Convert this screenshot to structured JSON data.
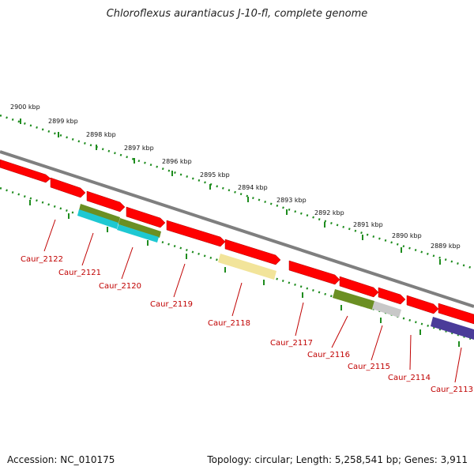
{
  "title": "Chloroflexus aurantiacus J-10-fl, complete genome",
  "accession": "Accession: NC_010175",
  "summary": "Topology: circular; Length: 5,258,541 bp; Genes: 3,911",
  "colors": {
    "backbone": "#7f7f7f",
    "ruler": "#1e8c1e",
    "gene": "#ff0000",
    "gene_label": "#c00000",
    "olive": "#6b8f23",
    "cyan": "#1ec8d2",
    "pale_yellow": "#f2e49a",
    "light_gray": "#c8c8c8",
    "purple": "#4a3c99"
  },
  "kbp_labels": [
    "2900 kbp",
    "2899 kbp",
    "2898 kbp",
    "2897 kbp",
    "2896 kbp",
    "2895 kbp",
    "2894 kbp",
    "2893 kbp",
    "2892 kbp",
    "2891 kbp",
    "2890 kbp",
    "2889 kbp"
  ],
  "gene_labels": [
    "Caur_2122",
    "Caur_2121",
    "Caur_2120",
    "Caur_2119",
    "Caur_2118",
    "Caur_2117",
    "Caur_2116",
    "Caur_2115",
    "Caur_2114",
    "Caur_2113"
  ]
}
